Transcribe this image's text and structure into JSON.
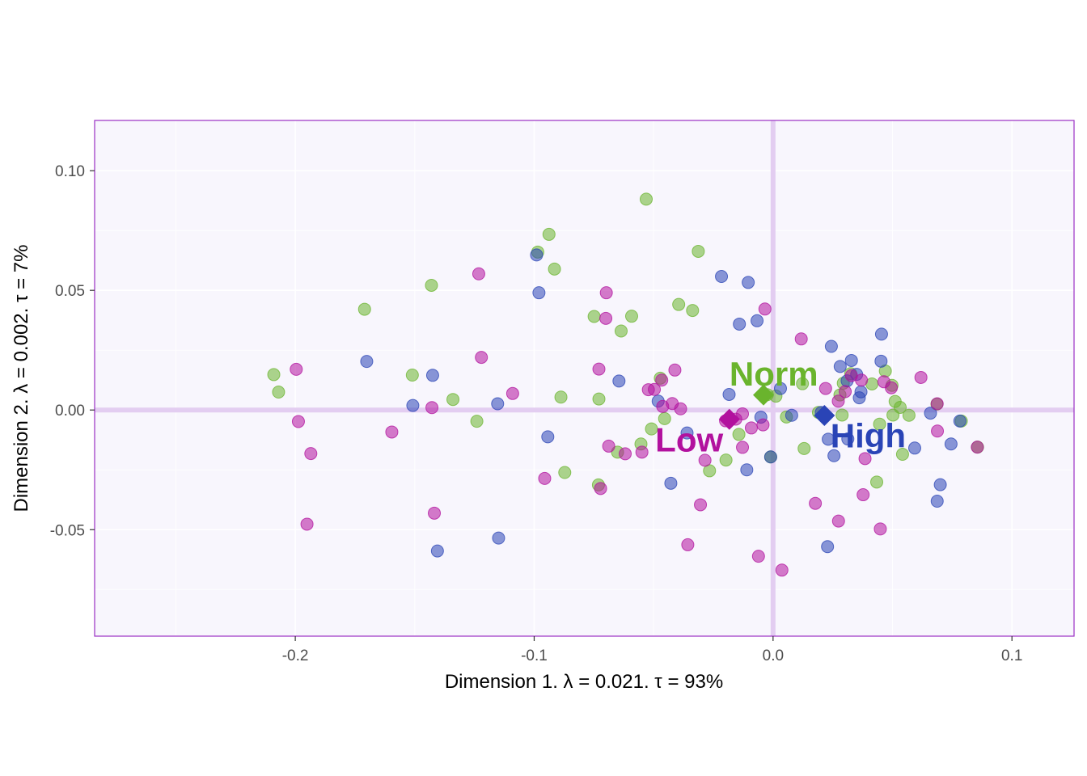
{
  "colors": {
    "panel_bg": "#f8f6fd",
    "panel_border": "#9a2fc4",
    "grid": "#ffffff",
    "zero_line": "#e3cdf1",
    "Norm": "#6ab42d",
    "High": "#2a44b6",
    "Low": "#b2119e"
  },
  "chart_data": {
    "type": "scatter",
    "xlabel": "Dimension 1.   λ = 0.021.  τ = 93%",
    "ylabel": "Dimension 2.   λ = 0.002.  τ = 7%",
    "xlim": [
      -0.284,
      0.126
    ],
    "ylim": [
      -0.0945,
      0.121
    ],
    "x_ticks": [
      -0.2,
      -0.1,
      0.0,
      0.1
    ],
    "x_tick_labels": [
      "-0.2",
      "-0.1",
      "0.0",
      "0.1"
    ],
    "y_ticks": [
      -0.05,
      0.0,
      0.05,
      0.1
    ],
    "y_tick_labels": [
      "-0.05",
      "0.00",
      "0.05",
      "0.10"
    ],
    "grid": true,
    "reference_lines": {
      "x": 0,
      "y": 0
    },
    "series": [
      {
        "name": "Norm",
        "marker": "circle",
        "points": [
          [
            -0.209,
            0.0148
          ],
          [
            -0.207,
            0.0075
          ],
          [
            -0.171,
            0.0421
          ],
          [
            -0.151,
            0.0146
          ],
          [
            -0.143,
            0.0521
          ],
          [
            -0.134,
            0.0044
          ],
          [
            -0.124,
            -0.0047
          ],
          [
            -0.0985,
            0.066
          ],
          [
            -0.0938,
            0.0734
          ],
          [
            -0.0915,
            0.0589
          ],
          [
            -0.0888,
            0.0054
          ],
          [
            -0.0872,
            -0.0261
          ],
          [
            -0.0749,
            0.0391
          ],
          [
            -0.0729,
            0.0046
          ],
          [
            -0.0731,
            -0.0313
          ],
          [
            -0.0636,
            0.033
          ],
          [
            -0.0592,
            0.0392
          ],
          [
            -0.0651,
            -0.0176
          ],
          [
            -0.0553,
            -0.0142
          ],
          [
            -0.0531,
            0.0881
          ],
          [
            -0.0509,
            -0.0079
          ],
          [
            -0.0472,
            0.0133
          ],
          [
            -0.0454,
            -0.0036
          ],
          [
            -0.0395,
            0.0441
          ],
          [
            -0.0337,
            0.0416
          ],
          [
            -0.0313,
            0.0663
          ],
          [
            -0.0266,
            -0.0254
          ],
          [
            -0.0197,
            -0.0209
          ],
          [
            -0.0143,
            -0.0102
          ],
          [
            -0.0024,
            0.0064
          ],
          [
            0.0012,
            0.0058
          ],
          [
            0.0056,
            -0.0029
          ],
          [
            0.0123,
            0.011
          ],
          [
            0.013,
            -0.0161
          ],
          [
            0.019,
            -0.001
          ],
          [
            0.028,
            0.0063
          ],
          [
            0.0289,
            -0.0021
          ],
          [
            0.0294,
            0.0112
          ],
          [
            0.0325,
            0.0152
          ],
          [
            0.0414,
            0.0109
          ],
          [
            0.0434,
            -0.0301
          ],
          [
            0.0446,
            -0.0059
          ],
          [
            0.047,
            0.0163
          ],
          [
            0.0498,
            0.0103
          ],
          [
            0.0502,
            -0.0021
          ],
          [
            0.0511,
            0.0036
          ],
          [
            0.0532,
            0.0011
          ],
          [
            0.0542,
            -0.0185
          ],
          [
            0.0569,
            -0.0022
          ],
          [
            0.0686,
            0.0025
          ],
          [
            0.0788,
            -0.0046
          ],
          [
            0.0856,
            -0.0155
          ],
          [
            -0.001,
            -0.0196
          ]
        ]
      },
      {
        "name": "High",
        "marker": "circle",
        "points": [
          [
            -0.1701,
            0.0203
          ],
          [
            -0.1508,
            0.0019
          ],
          [
            -0.1425,
            0.0145
          ],
          [
            -0.1405,
            -0.0589
          ],
          [
            -0.1153,
            0.0026
          ],
          [
            -0.1149,
            -0.0535
          ],
          [
            -0.099,
            0.0648
          ],
          [
            -0.098,
            0.049
          ],
          [
            -0.0943,
            -0.0112
          ],
          [
            -0.0645,
            0.0121
          ],
          [
            -0.0481,
            0.0037
          ],
          [
            -0.0428,
            -0.0306
          ],
          [
            -0.036,
            -0.0096
          ],
          [
            -0.0216,
            0.0558
          ],
          [
            -0.0184,
            0.0065
          ],
          [
            -0.0141,
            0.0359
          ],
          [
            -0.011,
            -0.025
          ],
          [
            -0.0104,
            0.0533
          ],
          [
            -0.0067,
            0.0373
          ],
          [
            -0.0051,
            -0.003
          ],
          [
            0.0031,
            0.009
          ],
          [
            0.0078,
            -0.0022
          ],
          [
            0.0202,
            -0.001
          ],
          [
            0.0228,
            -0.0571
          ],
          [
            0.0231,
            -0.0122
          ],
          [
            0.0244,
            0.0266
          ],
          [
            0.0255,
            -0.0191
          ],
          [
            0.0281,
            0.0182
          ],
          [
            0.0313,
            -0.0121
          ],
          [
            0.031,
            0.0122
          ],
          [
            0.0328,
            0.0207
          ],
          [
            0.035,
            0.0149
          ],
          [
            0.0361,
            0.0051
          ],
          [
            0.0368,
            0.0076
          ],
          [
            0.0452,
            0.0204
          ],
          [
            0.0454,
            0.0317
          ],
          [
            0.0593,
            -0.0159
          ],
          [
            0.0659,
            -0.0013
          ],
          [
            0.0687,
            -0.0381
          ],
          [
            0.07,
            -0.0312
          ],
          [
            0.0745,
            -0.0142
          ],
          [
            0.0782,
            -0.0046
          ],
          [
            -0.001,
            -0.0196
          ]
        ]
      },
      {
        "name": "Low",
        "marker": "circle",
        "points": [
          [
            -0.1996,
            0.017
          ],
          [
            -0.1987,
            -0.0048
          ],
          [
            -0.1951,
            -0.0477
          ],
          [
            -0.1935,
            -0.0182
          ],
          [
            -0.1596,
            -0.0092
          ],
          [
            -0.1428,
            0.001
          ],
          [
            -0.1418,
            -0.0431
          ],
          [
            -0.1232,
            0.0569
          ],
          [
            -0.1221,
            0.022
          ],
          [
            -0.109,
            0.0069
          ],
          [
            -0.0956,
            -0.0286
          ],
          [
            -0.0729,
            0.0171
          ],
          [
            -0.0722,
            -0.0328
          ],
          [
            -0.07,
            0.0383
          ],
          [
            -0.0698,
            0.049
          ],
          [
            -0.0688,
            -0.0151
          ],
          [
            -0.0619,
            -0.0183
          ],
          [
            -0.0549,
            -0.0176
          ],
          [
            -0.0522,
            0.0085
          ],
          [
            -0.0497,
            0.0086
          ],
          [
            -0.0462,
            0.0015
          ],
          [
            -0.0466,
            0.0125
          ],
          [
            -0.0422,
            0.0027
          ],
          [
            -0.0411,
            0.0167
          ],
          [
            -0.0387,
            0.0005
          ],
          [
            -0.0357,
            -0.0563
          ],
          [
            -0.0304,
            -0.0396
          ],
          [
            -0.0285,
            -0.021
          ],
          [
            -0.0199,
            -0.0045
          ],
          [
            -0.0156,
            -0.0038
          ],
          [
            -0.0128,
            -0.0016
          ],
          [
            -0.0128,
            -0.0156
          ],
          [
            -0.0091,
            -0.0075
          ],
          [
            -0.0061,
            -0.0611
          ],
          [
            -0.0042,
            -0.0062
          ],
          [
            -0.0034,
            0.0422
          ],
          [
            0.0037,
            -0.0669
          ],
          [
            0.0118,
            0.0297
          ],
          [
            0.0177,
            -0.039
          ],
          [
            0.022,
            0.009
          ],
          [
            0.0273,
            0.0037
          ],
          [
            0.0274,
            -0.0464
          ],
          [
            0.0302,
            0.0077
          ],
          [
            0.0328,
            0.0144
          ],
          [
            0.037,
            0.0125
          ],
          [
            0.0377,
            -0.0354
          ],
          [
            0.0385,
            -0.0203
          ],
          [
            0.0449,
            -0.0497
          ],
          [
            0.0464,
            0.0118
          ],
          [
            0.0495,
            0.0093
          ],
          [
            0.0619,
            0.0136
          ],
          [
            0.0687,
            0.0026
          ],
          [
            0.0688,
            -0.0088
          ],
          [
            0.0855,
            -0.0155
          ]
        ]
      }
    ],
    "centroids": [
      {
        "name": "Norm",
        "label": "Norm",
        "x": -0.004,
        "y": 0.0063,
        "label_x": 0.0003,
        "label_y": 0.014
      },
      {
        "name": "High",
        "label": "High",
        "x": 0.0215,
        "y": -0.0023,
        "label_x": 0.0398,
        "label_y": -0.0118
      },
      {
        "name": "Low",
        "label": "Low",
        "x": -0.0183,
        "y": -0.0039,
        "label_x": -0.0351,
        "label_y": -0.0136
      }
    ]
  }
}
